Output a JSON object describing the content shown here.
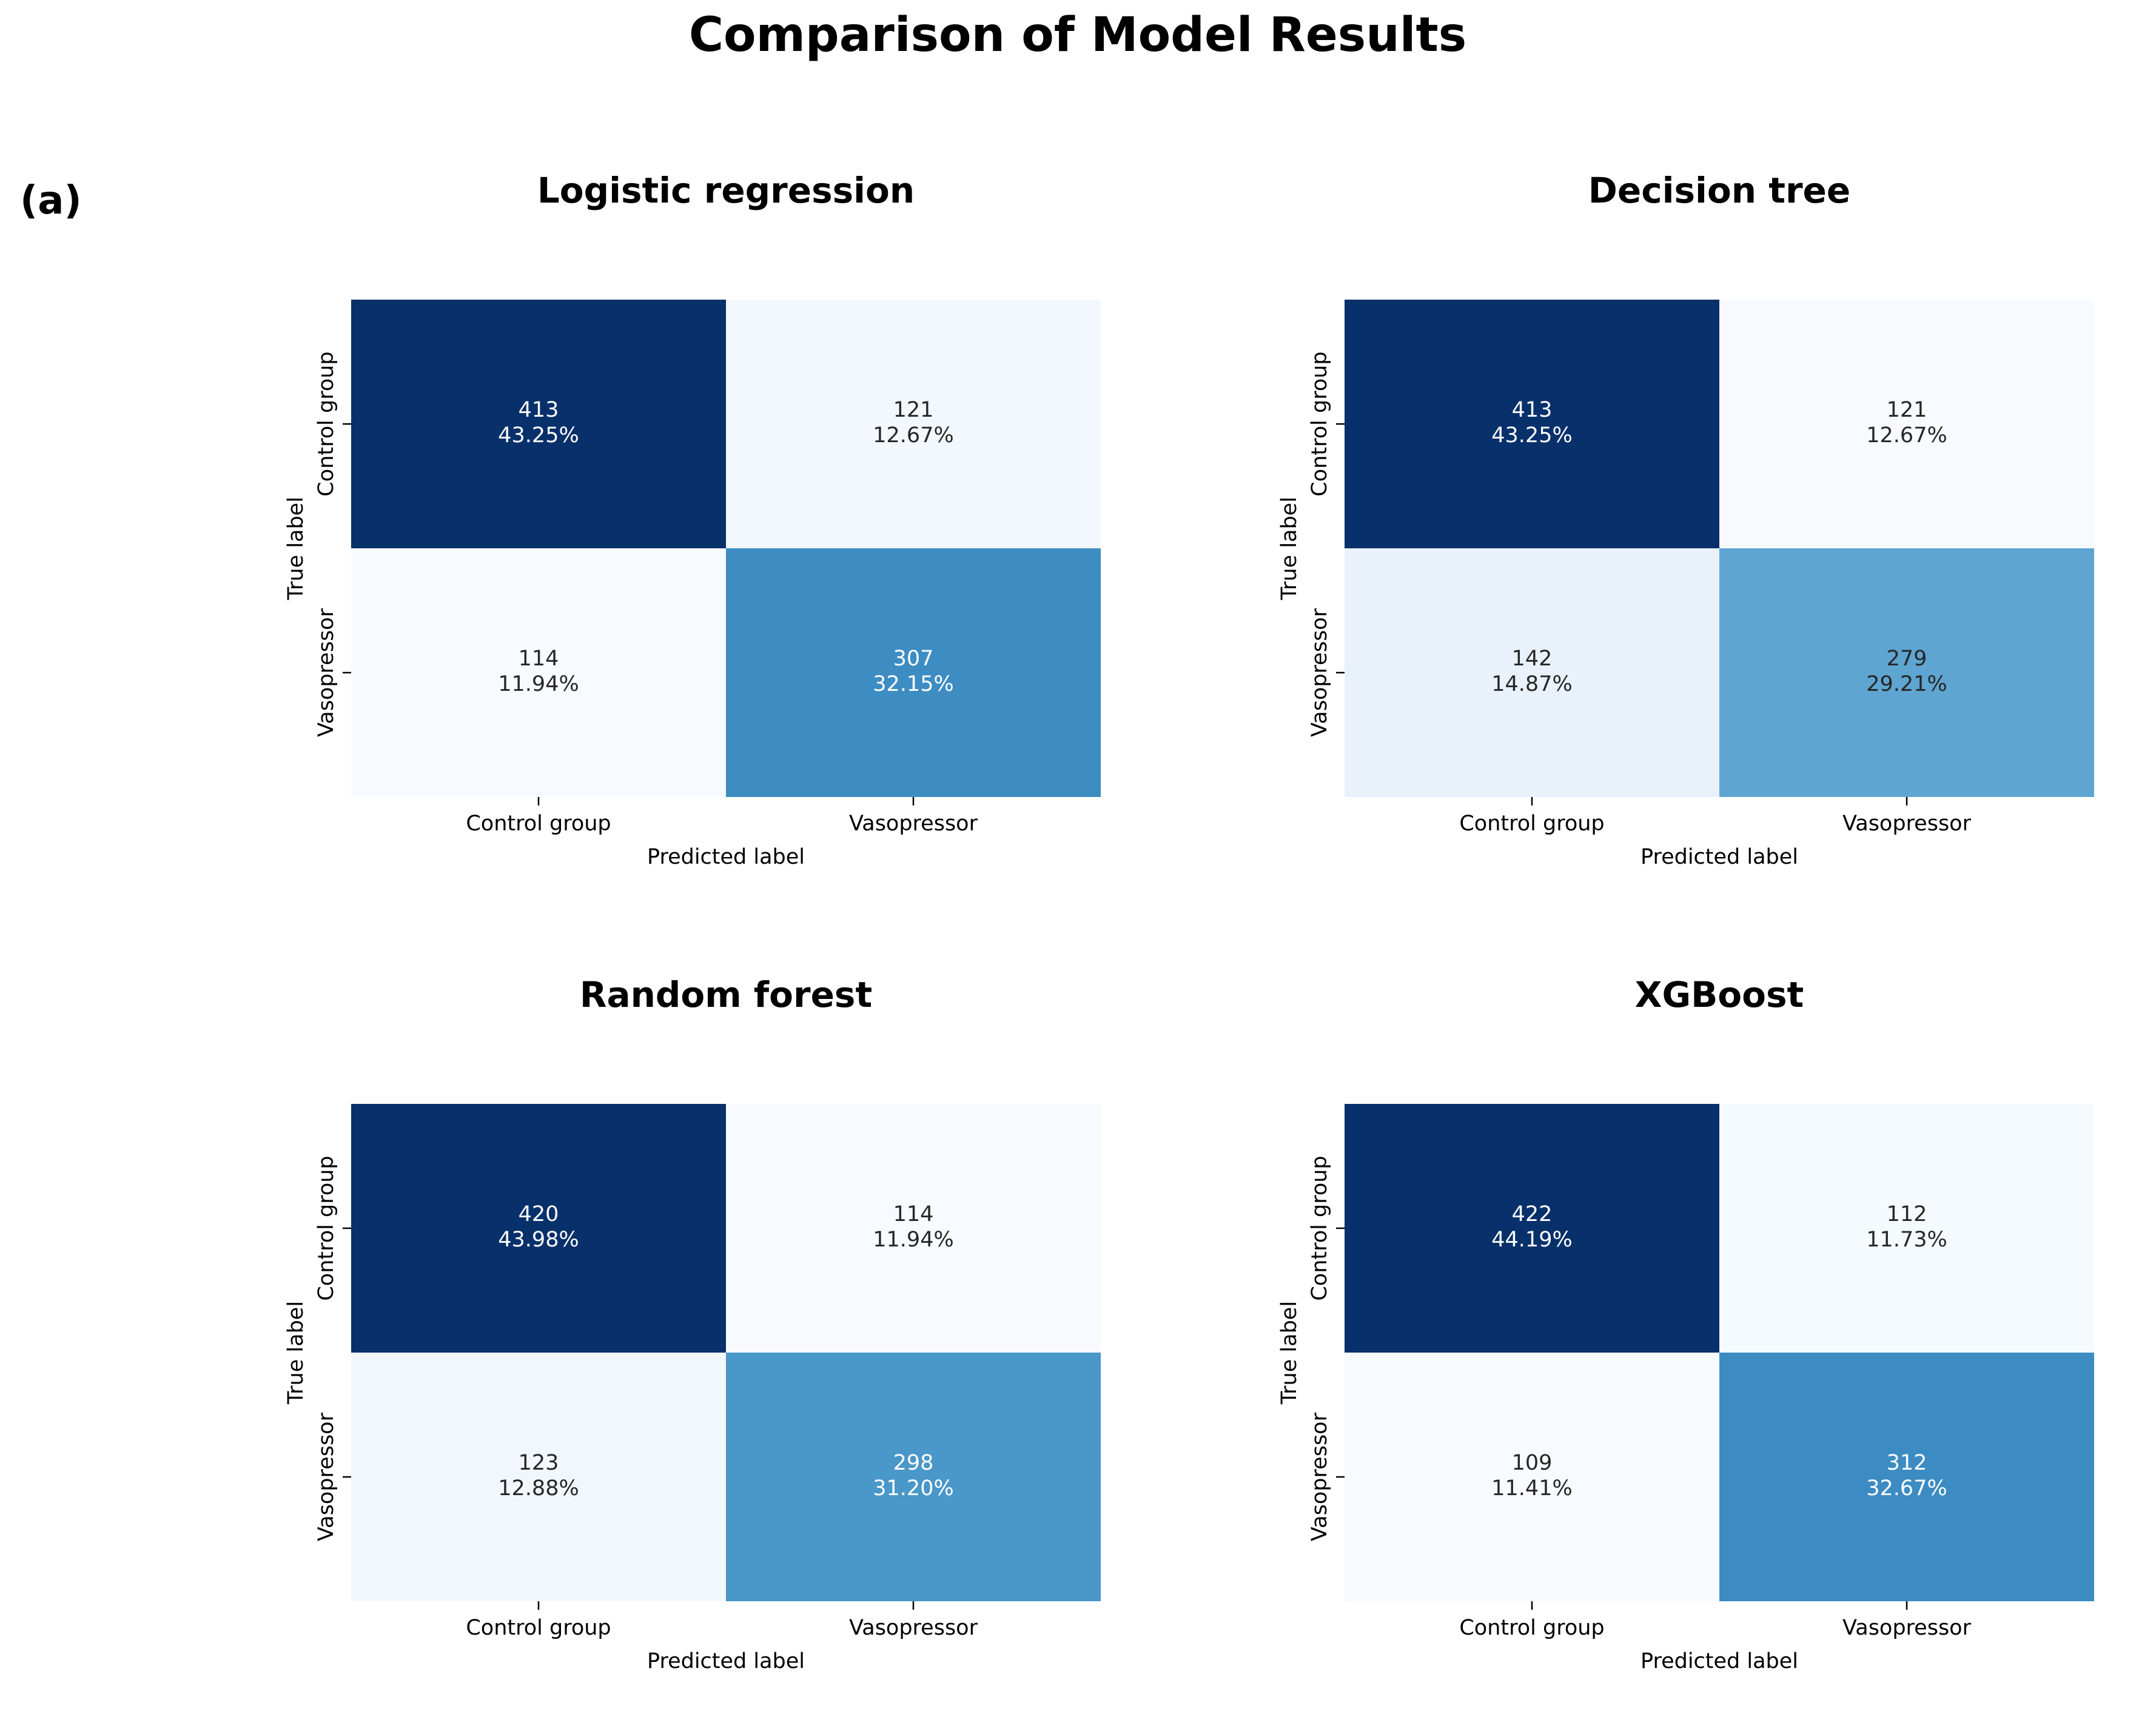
{
  "figure": {
    "title": "Comparison of Model Results",
    "panel_label": "(a)"
  },
  "chart_data": [
    {
      "type": "heatmap",
      "title": "Logistic regression",
      "xlabel": "Predicted label",
      "ylabel": "True label",
      "x_categories": [
        "Control group",
        "Vasopressor"
      ],
      "y_categories": [
        "Control group",
        "Vasopressor"
      ],
      "values": [
        [
          413,
          121
        ],
        [
          114,
          307
        ]
      ],
      "percentages": [
        [
          "43.25%",
          "12.67%"
        ],
        [
          "11.94%",
          "32.15%"
        ]
      ],
      "colormap": "Blues",
      "colorbar": false
    },
    {
      "type": "heatmap",
      "title": "Decision tree",
      "xlabel": "Predicted label",
      "ylabel": "True label",
      "x_categories": [
        "Control group",
        "Vasopressor"
      ],
      "y_categories": [
        "Control group",
        "Vasopressor"
      ],
      "values": [
        [
          413,
          121
        ],
        [
          142,
          279
        ]
      ],
      "percentages": [
        [
          "43.25%",
          "12.67%"
        ],
        [
          "14.87%",
          "29.21%"
        ]
      ],
      "colormap": "Blues",
      "colorbar": false
    },
    {
      "type": "heatmap",
      "title": "Random forest",
      "xlabel": "Predicted label",
      "ylabel": "True label",
      "x_categories": [
        "Control group",
        "Vasopressor"
      ],
      "y_categories": [
        "Control group",
        "Vasopressor"
      ],
      "values": [
        [
          420,
          114
        ],
        [
          123,
          298
        ]
      ],
      "percentages": [
        [
          "43.98%",
          "11.94%"
        ],
        [
          "12.88%",
          "31.20%"
        ]
      ],
      "colormap": "Blues",
      "colorbar": false
    },
    {
      "type": "heatmap",
      "title": "XGBoost",
      "xlabel": "Predicted label",
      "ylabel": "True label",
      "x_categories": [
        "Control group",
        "Vasopressor"
      ],
      "y_categories": [
        "Control group",
        "Vasopressor"
      ],
      "values": [
        [
          422,
          112
        ],
        [
          109,
          312
        ]
      ],
      "percentages": [
        [
          "44.19%",
          "11.73%"
        ],
        [
          "11.41%",
          "32.67%"
        ]
      ],
      "colormap": "Blues",
      "colorbar": false
    }
  ]
}
